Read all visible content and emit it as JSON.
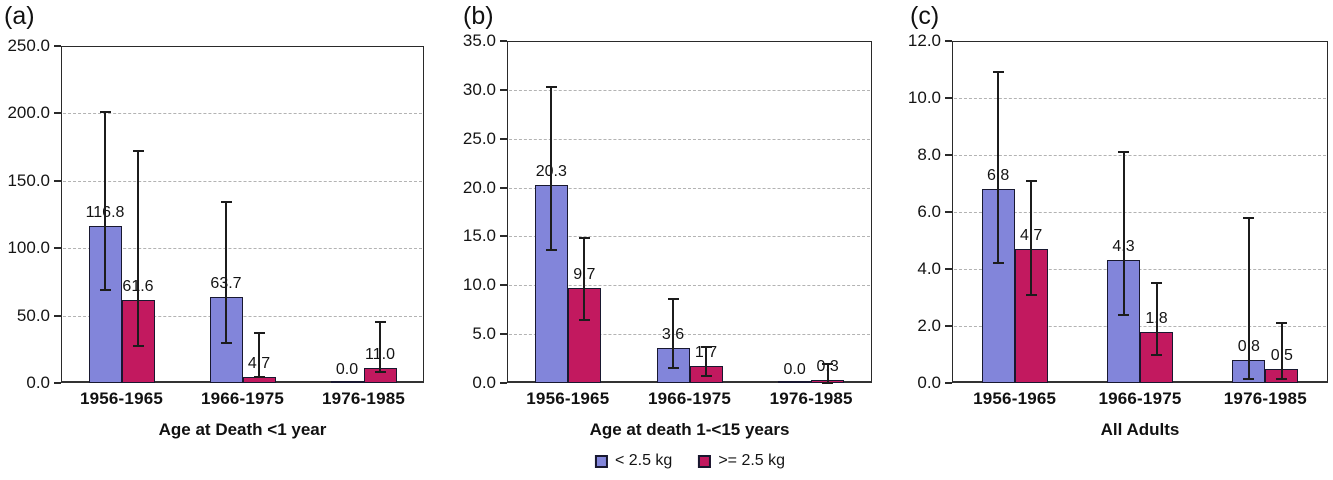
{
  "chart_data": [
    {
      "type": "bar",
      "panel_label": "(a)",
      "xlabel": "Age at Death <1 year",
      "categories": [
        "1956-1965",
        "1966-1975",
        "1976-1985"
      ],
      "ylim": [
        0,
        250
      ],
      "ytick_step": 50,
      "ytick_labels": [
        "0.0",
        "50.0",
        "100.0",
        "150.0",
        "200.0",
        "250.0"
      ],
      "grid": true,
      "series": [
        {
          "name": "< 2.5 kg",
          "color_key": "lt_2_5",
          "values": [
            116.8,
            63.7,
            0.0
          ],
          "value_labels": [
            "116.8",
            "63.7",
            "0.0"
          ],
          "err_low": [
            69,
            30,
            null
          ],
          "err_high": [
            201,
            134,
            null
          ]
        },
        {
          "name": ">= 2.5 kg",
          "color_key": "ge_2_5",
          "values": [
            61.6,
            4.7,
            11.0
          ],
          "value_labels": [
            "61.6",
            "4.7",
            "11.0"
          ],
          "err_low": [
            27.5,
            4.7,
            8.0
          ],
          "err_high": [
            172,
            37,
            45
          ]
        }
      ]
    },
    {
      "type": "bar",
      "panel_label": "(b)",
      "xlabel": "Age at death 1-<15 years",
      "categories": [
        "1956-1965",
        "1966-1975",
        "1976-1985"
      ],
      "ylim": [
        0,
        35
      ],
      "ytick_step": 5,
      "ytick_labels": [
        "0.0",
        "5.0",
        "10.0",
        "15.0",
        "20.0",
        "25.0",
        "30.0",
        "35.0"
      ],
      "grid": true,
      "series": [
        {
          "name": "< 2.5 kg",
          "color_key": "lt_2_5",
          "values": [
            20.3,
            3.6,
            0.0
          ],
          "value_labels": [
            "20.3",
            "3.6",
            "0.0"
          ],
          "err_low": [
            13.6,
            1.5,
            null
          ],
          "err_high": [
            30.3,
            8.6,
            null
          ]
        },
        {
          "name": ">= 2.5 kg",
          "color_key": "ge_2_5",
          "values": [
            9.7,
            1.7,
            0.3
          ],
          "value_labels": [
            "9.7",
            "1.7",
            "0.3"
          ],
          "err_low": [
            6.4,
            0.7,
            0.05
          ],
          "err_high": [
            14.8,
            3.7,
            1.9
          ]
        }
      ]
    },
    {
      "type": "bar",
      "panel_label": "(c)",
      "xlabel": "All Adults",
      "categories": [
        "1956-1965",
        "1966-1975",
        "1976-1985"
      ],
      "ylim": [
        0,
        12
      ],
      "ytick_step": 2,
      "ytick_labels": [
        "0.0",
        "2.0",
        "4.0",
        "6.0",
        "8.0",
        "10.0",
        "12.0"
      ],
      "grid": true,
      "series": [
        {
          "name": "< 2.5 kg",
          "color_key": "lt_2_5",
          "values": [
            6.8,
            4.3,
            0.8
          ],
          "value_labels": [
            "6.8",
            "4.3",
            "0.8"
          ],
          "err_low": [
            4.2,
            2.4,
            0.15
          ],
          "err_high": [
            10.9,
            8.1,
            5.8
          ]
        },
        {
          "name": ">= 2.5 kg",
          "color_key": "ge_2_5",
          "values": [
            4.7,
            1.8,
            0.5
          ],
          "value_labels": [
            "4.7",
            "1.8",
            "0.5"
          ],
          "err_low": [
            3.1,
            1.0,
            0.15
          ],
          "err_high": [
            7.1,
            3.5,
            2.1
          ]
        }
      ]
    }
  ],
  "legend": {
    "items": [
      {
        "label": "< 2.5 kg",
        "color_key": "lt_2_5"
      },
      {
        "label": ">= 2.5 kg",
        "color_key": "ge_2_5"
      }
    ]
  },
  "colors": {
    "lt_2_5": "#8285DA",
    "ge_2_5": "#C2195F",
    "bar_border": "#18182f",
    "error_bar": "#1c1c1c",
    "grid": "#b3b3b3",
    "axis_border": "#2a2a2a",
    "text": "#141414"
  }
}
